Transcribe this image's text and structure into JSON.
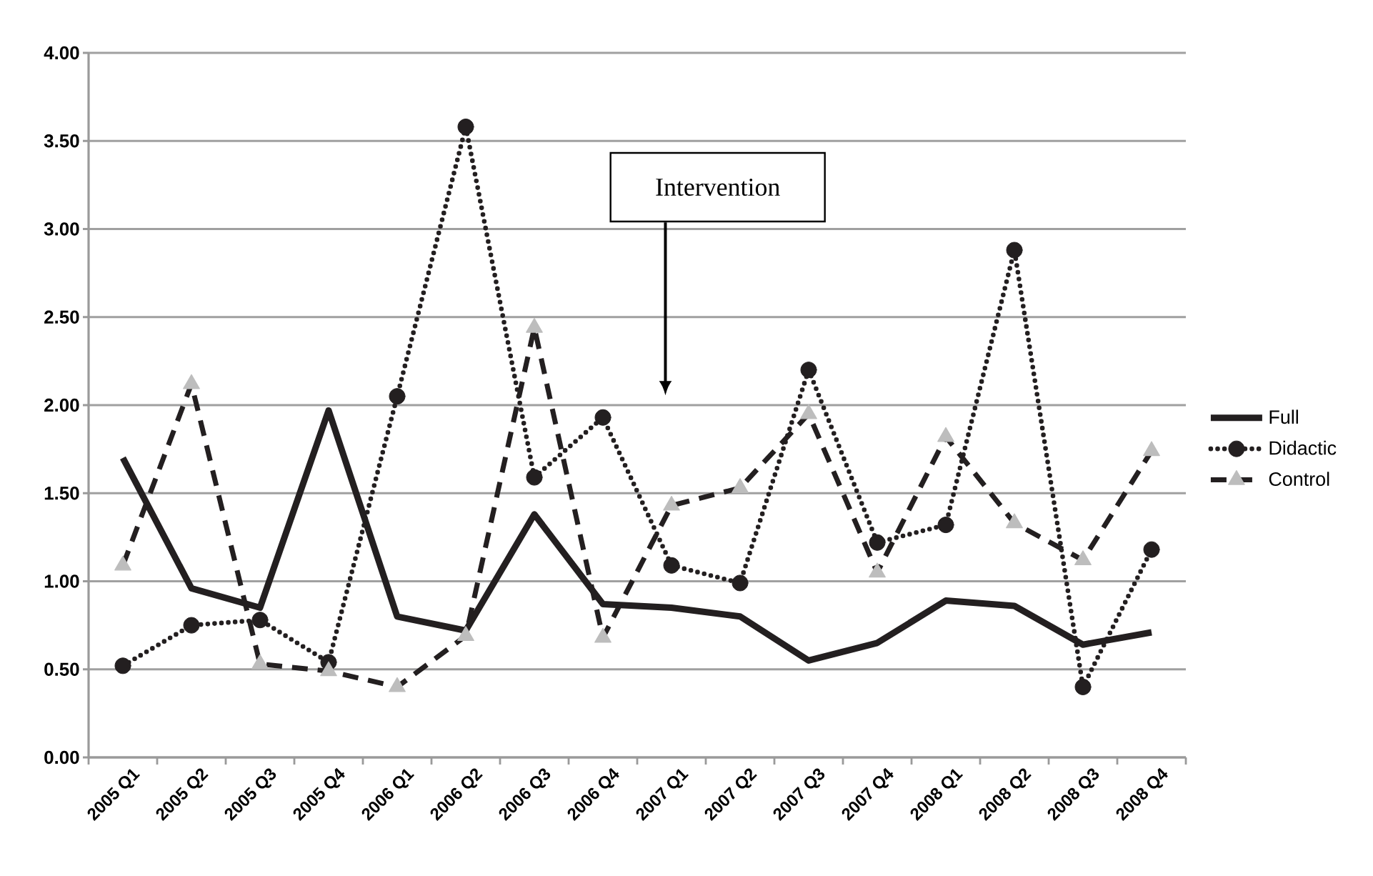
{
  "chart_data": {
    "type": "line",
    "categories": [
      "2005 Q1",
      "2005 Q2",
      "2005 Q3",
      "2005 Q4",
      "2006 Q1",
      "2006 Q2",
      "2006 Q3",
      "2006 Q4",
      "2007 Q1",
      "2007 Q2",
      "2007 Q3",
      "2007 Q4",
      "2008 Q1",
      "2008 Q2",
      "2008 Q3",
      "2008 Q4"
    ],
    "series": [
      {
        "name": "Full",
        "color": "#231f20",
        "line_style": "solid",
        "marker": "none",
        "values": [
          1.7,
          0.96,
          0.85,
          1.97,
          0.8,
          0.72,
          1.38,
          0.87,
          0.85,
          0.8,
          0.55,
          0.65,
          0.89,
          0.86,
          0.64,
          0.71
        ]
      },
      {
        "name": "Didactic",
        "color": "#231f20",
        "line_style": "dotted",
        "marker": "circle",
        "values": [
          0.52,
          0.75,
          0.78,
          0.54,
          2.05,
          3.58,
          1.59,
          1.93,
          1.09,
          0.99,
          2.2,
          1.22,
          1.32,
          2.88,
          0.4,
          1.18
        ]
      },
      {
        "name": "Control",
        "color": "#231f20",
        "line_style": "dashed",
        "marker": "triangle",
        "values": [
          1.09,
          2.12,
          0.53,
          0.49,
          0.4,
          0.69,
          2.44,
          0.68,
          1.43,
          1.53,
          1.95,
          1.05,
          1.82,
          1.33,
          1.12,
          1.74
        ]
      }
    ],
    "ylim": [
      0,
      4
    ],
    "yticks": [
      {
        "value": 0,
        "label": "0.00"
      },
      {
        "value": 0.5,
        "label": "0.50"
      },
      {
        "value": 1,
        "label": "1.00"
      },
      {
        "value": 1.5,
        "label": "1.50"
      },
      {
        "value": 2,
        "label": "2.00"
      },
      {
        "value": 2.5,
        "label": "2.50"
      },
      {
        "value": 3,
        "label": "3.00"
      },
      {
        "value": 3.5,
        "label": "3.50"
      },
      {
        "value": 4,
        "label": "4.00"
      }
    ],
    "grid": "y",
    "legend": "right",
    "annotations": [
      "Intervention"
    ]
  }
}
